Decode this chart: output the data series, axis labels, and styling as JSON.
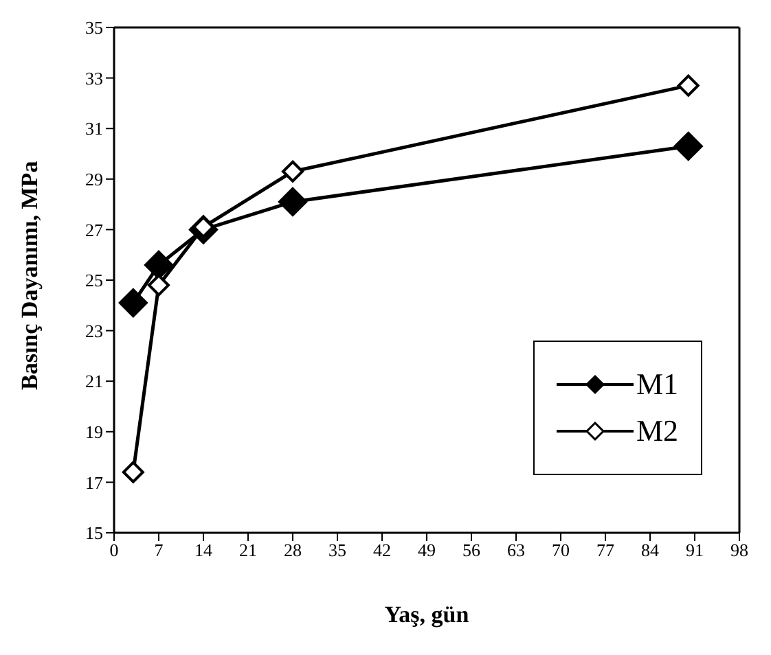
{
  "chart_data": {
    "type": "line",
    "xlabel": "Yaş, gün",
    "ylabel": "Basınç Dayanımı, MPa",
    "x": [
      3,
      7,
      14,
      28,
      90
    ],
    "series": [
      {
        "name": "M1",
        "color": "#000000",
        "values": [
          24.1,
          25.6,
          27.0,
          28.1,
          30.3
        ]
      },
      {
        "name": "M2",
        "color": "#000000",
        "values": [
          17.4,
          24.8,
          27.1,
          29.3,
          32.7
        ]
      }
    ],
    "xlim": [
      0,
      98
    ],
    "xticks": [
      0,
      7,
      14,
      21,
      28,
      35,
      42,
      49,
      56,
      63,
      70,
      77,
      84,
      91,
      98
    ],
    "ylim": [
      15,
      35
    ],
    "yticks": [
      15,
      17,
      19,
      21,
      23,
      25,
      27,
      29,
      31,
      33,
      35
    ],
    "grid": false,
    "legend": "bottom right",
    "marker": "diamond",
    "line_style": "solid"
  }
}
